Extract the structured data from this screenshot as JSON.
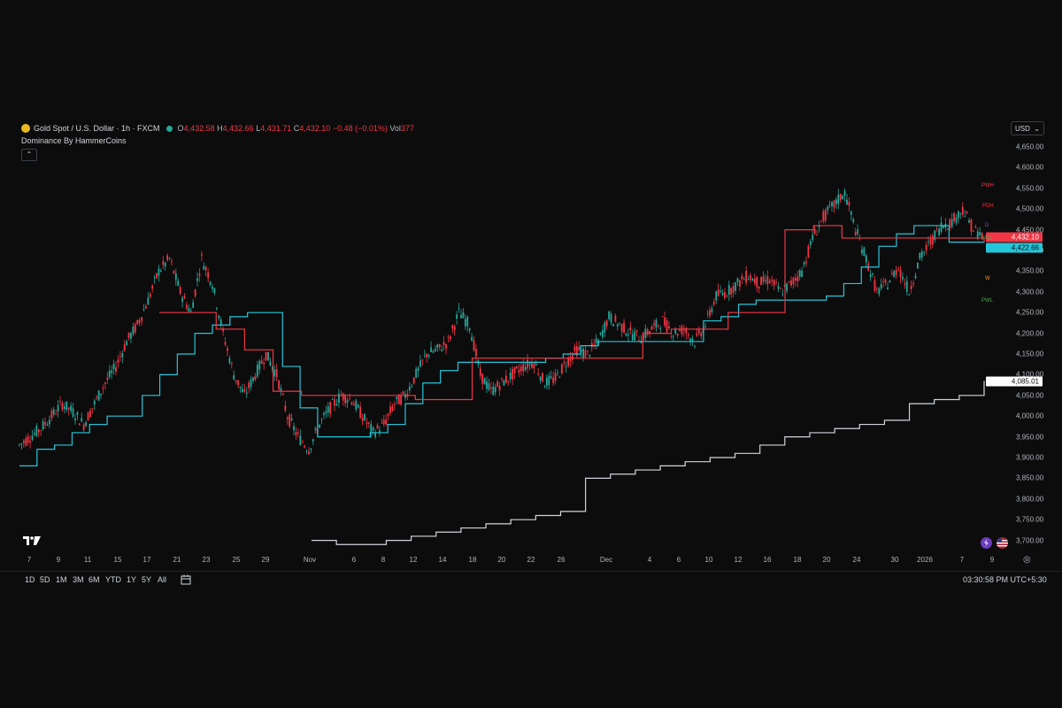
{
  "legend": {
    "symbol": "Gold Spot / U.S. Dollar · 1h · FXCM",
    "o_label": "O",
    "o": "4,432.58",
    "h_label": "H",
    "h": "4,432.66",
    "l_label": "L",
    "l": "4,431.71",
    "c_label": "C",
    "c": "4,432.10",
    "change": "−0.48 (−0.01%)",
    "vol_label": "Vol",
    "vol": "377",
    "indicator": "Dominance By HammerCoins",
    "collapse": "⌃"
  },
  "currency": {
    "value": "USD",
    "chevron": "⌄"
  },
  "price_axis": [
    "4,650.00",
    "4,600.00",
    "4,550.00",
    "4,500.00",
    "4,450.00",
    "4,400.00",
    "4,350.00",
    "4,300.00",
    "4,250.00",
    "4,200.00",
    "4,150.00",
    "4,100.00",
    "4,050.00",
    "4,000.00",
    "3,950.00",
    "3,900.00",
    "3,850.00",
    "3,800.00",
    "3,750.00",
    "3,700.00"
  ],
  "price_tags": {
    "last": "4,432.10",
    "last_color": "#f23645",
    "support": "4,422.66",
    "support_color": "#26c6da",
    "indicator": "4,085.01"
  },
  "pivot_labels": [
    "PWH",
    "PDH",
    "D",
    "PDL",
    "W",
    "PWL"
  ],
  "time_axis": [
    "7",
    "9",
    "11",
    "15",
    "17",
    "21",
    "23",
    "25",
    "29",
    "Nov",
    "6",
    "8",
    "12",
    "14",
    "18",
    "20",
    "22",
    "26",
    "Dec",
    "4",
    "6",
    "10",
    "12",
    "16",
    "18",
    "20",
    "24",
    "30",
    "2026",
    "7",
    "9"
  ],
  "timeframes": [
    "1D",
    "5D",
    "1M",
    "3M",
    "6M",
    "YTD",
    "1Y",
    "5Y",
    "All"
  ],
  "clock": "03:30:58 PM UTC+5:30",
  "icons": {
    "logo": "tradingview-logo-icon",
    "compare": "calendar-range-icon",
    "settings": "gear-icon",
    "flash": "flash-icon",
    "flag": "us-flag-icon"
  },
  "colors": {
    "up": "#26a69a",
    "down": "#f23645",
    "support": "#26c6da",
    "resistance": "#f23645",
    "indicator": "#d1d4dc"
  },
  "chart_data": {
    "type": "line",
    "series": [
      {
        "values": [
          3930,
          3950,
          3970,
          4000,
          4030,
          4010,
          3980,
          4030,
          4080,
          4120,
          4180,
          4220,
          4280,
          4350,
          4380,
          4300,
          4250,
          4380,
          4320,
          4200,
          4100,
          4050,
          4100,
          4150,
          4100,
          4000,
          3950,
          3920,
          3980,
          4020,
          4050,
          4040,
          4000,
          3960,
          3980,
          4030,
          4050,
          4100,
          4150,
          4160,
          4180,
          4250,
          4220,
          4100,
          4060,
          4080,
          4100,
          4120,
          4130,
          4080,
          4090,
          4130,
          4160,
          4150,
          4180,
          4240,
          4220,
          4200,
          4190,
          4210,
          4230,
          4200,
          4210,
          4180,
          4220,
          4290,
          4300,
          4320,
          4340,
          4320,
          4330,
          4300,
          4320,
          4350,
          4430,
          4480,
          4510,
          4540,
          4450,
          4380,
          4300,
          4320,
          4360,
          4300,
          4380,
          4420,
          4460,
          4470,
          4500,
          4450,
          4432
        ]
      },
      {
        "values": [
          3880,
          3920,
          3930,
          3960,
          3980,
          4000,
          4000,
          4050,
          4100,
          4150,
          4200,
          4220,
          4240,
          4250,
          4250,
          4120,
          4020,
          3950,
          3950,
          3950,
          3960,
          3980,
          4030,
          4080,
          4110,
          4130,
          4130,
          4130,
          4130,
          4130,
          4140,
          4150,
          4170,
          4180,
          4180,
          4180,
          4180,
          4180,
          4180,
          4230,
          4240,
          4270,
          4280,
          4280,
          4280,
          4280,
          4290,
          4320,
          4360,
          4410,
          4440,
          4460,
          4460,
          4420,
          4420,
          4423
        ]
      },
      {
        "values": [
          4250,
          4250,
          4210,
          4160,
          4060,
          4050,
          4050,
          4050,
          4050,
          4040,
          4040,
          4140,
          4140,
          4140,
          4140,
          4140,
          4140,
          4200,
          4210,
          4210,
          4250,
          4250,
          4450,
          4460,
          4430,
          4430,
          4430,
          4430,
          4430,
          4420
        ]
      },
      {
        "values": [
          3700,
          3690,
          3690,
          3700,
          3710,
          3720,
          3730,
          3740,
          3750,
          3760,
          3770,
          3850,
          3860,
          3870,
          3880,
          3890,
          3900,
          3910,
          3930,
          3950,
          3960,
          3970,
          3980,
          3990,
          4030,
          4040,
          4050,
          4085
        ]
      }
    ],
    "ylim": [
      3680,
      4670
    ],
    "grid": false
  }
}
